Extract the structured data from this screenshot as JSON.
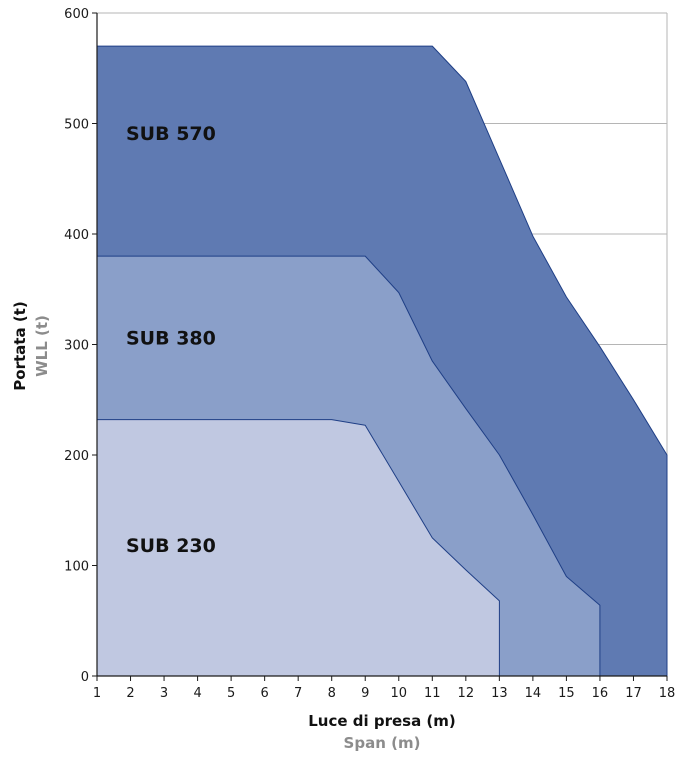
{
  "chart_data": {
    "type": "area",
    "title": "",
    "xlabel": "Luce di presa (m)",
    "xlabel_secondary": "Span (m)",
    "ylabel": "Portata (t)",
    "ylabel_secondary": "WLL (t)",
    "xlim": [
      1,
      18
    ],
    "ylim": [
      0,
      600
    ],
    "x_ticks": [
      1,
      2,
      3,
      4,
      5,
      6,
      7,
      8,
      9,
      10,
      11,
      12,
      13,
      14,
      15,
      16,
      17,
      18
    ],
    "y_ticks": [
      0,
      100,
      200,
      300,
      400,
      500,
      600
    ],
    "grid": "horizontal",
    "series": [
      {
        "name": "SUB 570",
        "color": "#5f7ab2",
        "points": [
          [
            1,
            570
          ],
          [
            11,
            570
          ],
          [
            12,
            538
          ],
          [
            13,
            468
          ],
          [
            14,
            398
          ],
          [
            15,
            343
          ],
          [
            16,
            298
          ],
          [
            17,
            250
          ],
          [
            18,
            200
          ],
          [
            18,
            0
          ],
          [
            1,
            0
          ]
        ]
      },
      {
        "name": "SUB 380",
        "color": "#8a9fc9",
        "points": [
          [
            1,
            380
          ],
          [
            9,
            380
          ],
          [
            10,
            347
          ],
          [
            11,
            285
          ],
          [
            12,
            242
          ],
          [
            13,
            200
          ],
          [
            14,
            146
          ],
          [
            15,
            90
          ],
          [
            16,
            64
          ],
          [
            16,
            0
          ],
          [
            1,
            0
          ]
        ]
      },
      {
        "name": "SUB 230",
        "color": "#c0c8e1",
        "points": [
          [
            1,
            232
          ],
          [
            8,
            232
          ],
          [
            9,
            227
          ],
          [
            10,
            176
          ],
          [
            11,
            125
          ],
          [
            12,
            96
          ],
          [
            13,
            68
          ],
          [
            13,
            0
          ],
          [
            1,
            0
          ]
        ]
      }
    ]
  }
}
